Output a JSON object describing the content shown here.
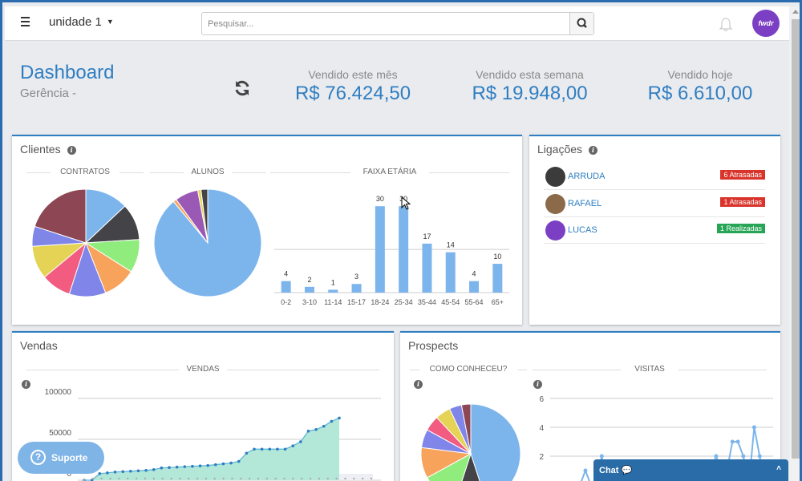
{
  "topbar": {
    "unit_label": "unidade 1",
    "search_placeholder": "Pesquisar...",
    "avatar_text": "fwdr"
  },
  "dashboard": {
    "title": "Dashboard",
    "subtitle": "Gerência -"
  },
  "stats": [
    {
      "label": "Vendido este mês",
      "value": "R$ 76.424,50"
    },
    {
      "label": "Vendido esta semana",
      "value": "R$ 19.948,00"
    },
    {
      "label": "Vendido hoje",
      "value": "R$ 6.610,00"
    }
  ],
  "clientes": {
    "title": "Clientes",
    "contratos_label": "CONTRATOS",
    "alunos_label": "ALUNOS",
    "faixa_label": "FAIXA ETÁRIA"
  },
  "ligacoes": {
    "title": "Ligações",
    "calls": [
      {
        "name": "ARRUDA",
        "badge": "6 Atrasadas",
        "color": "#d9342b"
      },
      {
        "name": "RAFAEL",
        "badge": "1 Atrasadas",
        "color": "#d9342b"
      },
      {
        "name": "LUCAS",
        "badge": "1 Realizadas",
        "color": "#27a556"
      }
    ]
  },
  "vendas": {
    "title": "Vendas",
    "chart_label": "VENDAS"
  },
  "prospects": {
    "title": "Prospects",
    "como_label": "COMO CONHECEU?",
    "visitas_label": "VISITAS"
  },
  "widgets": {
    "suporte_label": "Suporte",
    "chat_label": "Chat"
  },
  "chart_data": [
    {
      "type": "pie",
      "title": "CONTRATOS",
      "values": [
        13,
        11,
        10,
        10,
        11,
        9,
        10,
        6,
        20
      ],
      "colors": [
        "#7cb5ec",
        "#434348",
        "#90ed7d",
        "#f7a35c",
        "#8085e9",
        "#f15c80",
        "#e4d354",
        "#8085e8",
        "#8d4653"
      ]
    },
    {
      "type": "pie",
      "title": "ALUNOS",
      "values": [
        89,
        1,
        7,
        1,
        2
      ],
      "colors": [
        "#7cb5ec",
        "#f7a35c",
        "#9b59b6",
        "#e4d354",
        "#434348"
      ]
    },
    {
      "type": "bar",
      "title": "FAIXA ETÁRIA",
      "categories": [
        "0-2",
        "3-10",
        "11-14",
        "15-17",
        "18-24",
        "25-34",
        "35-44",
        "45-54",
        "55-64",
        "65+"
      ],
      "values": [
        4,
        2,
        1,
        3,
        30,
        30,
        17,
        14,
        4,
        10
      ],
      "ylim": [
        0,
        32
      ]
    },
    {
      "type": "area",
      "title": "VENDAS",
      "y_ticks": [
        "100000",
        "50000",
        "0"
      ],
      "ylim": [
        0,
        100000
      ],
      "values": [
        0,
        0,
        8000,
        9000,
        10000,
        10500,
        11000,
        11500,
        12000,
        13000,
        15000,
        15500,
        16000,
        16500,
        17000,
        17500,
        18000,
        19000,
        20000,
        21000,
        23000,
        33000,
        38000,
        38000,
        38000,
        38000,
        38000,
        42000,
        47000,
        60000,
        62000,
        66000,
        72000,
        76000
      ],
      "baseline_values": [
        0,
        2000,
        2000,
        2000,
        2000,
        2000,
        2000,
        2000,
        2000,
        2000,
        2000,
        2000,
        2000,
        2000,
        2000,
        2000,
        2000,
        2000,
        2000,
        2000,
        2000,
        2000,
        2000,
        2000,
        2000,
        2000,
        2000,
        2000,
        2000,
        2000,
        2000,
        2000,
        2000,
        2000
      ]
    },
    {
      "type": "pie",
      "title": "COMO CONHECEU?",
      "values": [
        45,
        10,
        12,
        10,
        6,
        5,
        5,
        4,
        3
      ],
      "colors": [
        "#7cb5ec",
        "#434348",
        "#90ed7d",
        "#f7a35c",
        "#8085e9",
        "#f15c80",
        "#e4d354",
        "#8085e8",
        "#8d4653"
      ]
    },
    {
      "type": "line",
      "title": "VISITAS",
      "y_ticks": [
        "6",
        "4",
        "2"
      ],
      "ylim": [
        0,
        6
      ],
      "values": [
        0,
        0,
        0,
        0,
        0,
        1,
        0,
        0,
        2,
        0,
        0,
        0,
        0,
        0,
        0,
        0,
        0,
        0,
        0,
        0,
        0,
        0,
        0,
        0,
        0,
        0,
        0,
        0,
        1,
        2,
        1,
        1,
        3,
        3,
        2,
        0,
        4,
        2,
        0
      ]
    }
  ]
}
